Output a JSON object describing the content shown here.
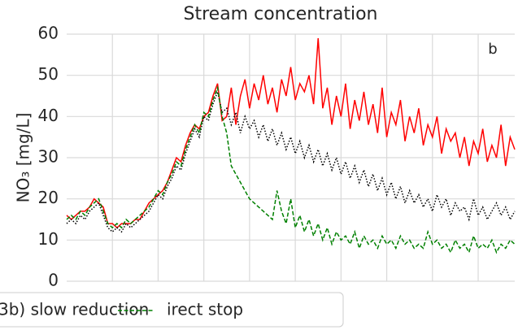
{
  "chart_data": {
    "type": "line",
    "title": "Stream concentration",
    "ylabel": "NO₃ [mg/L]",
    "annotation": "b",
    "x": [
      0,
      1,
      2,
      3,
      4,
      5,
      6,
      7,
      8,
      9,
      10,
      11,
      12,
      13,
      14,
      15,
      16,
      17,
      18,
      19,
      20,
      21,
      22,
      23,
      24,
      25,
      26,
      27,
      28,
      29,
      30,
      31,
      32,
      33,
      34,
      35,
      36,
      37,
      38,
      39,
      40,
      41,
      42,
      43,
      44,
      45,
      46,
      47,
      48,
      49,
      50,
      51,
      52,
      53,
      54,
      55,
      56,
      57,
      58,
      59,
      60,
      61,
      62,
      63,
      64,
      65,
      66,
      67,
      68,
      69,
      70,
      71,
      72,
      73,
      74,
      75,
      76,
      77,
      78,
      79,
      80,
      81,
      82,
      83,
      84,
      85,
      86,
      87,
      88,
      89,
      90,
      91,
      92,
      93,
      94,
      95,
      96,
      97,
      98
    ],
    "xlim": [
      0,
      98
    ],
    "xticks": [
      10,
      20,
      30,
      40,
      50,
      60,
      70,
      80,
      90
    ],
    "ylim": [
      0,
      60
    ],
    "yticks": [
      0,
      10,
      20,
      30,
      40,
      50,
      60
    ],
    "grid": true,
    "series": [
      {
        "name": "3b) slow reduction",
        "color": "#ff0000",
        "dash": "solid",
        "values": [
          16,
          15,
          16,
          17,
          17,
          18,
          20,
          19,
          18,
          14,
          14,
          13,
          14,
          14,
          14,
          15,
          15,
          17,
          19,
          20,
          21,
          22,
          24,
          27,
          30,
          29,
          33,
          36,
          38,
          37,
          40,
          41,
          45,
          48,
          39,
          40,
          47,
          38,
          45,
          49,
          42,
          48,
          44,
          50,
          43,
          47,
          41,
          49,
          45,
          52,
          44,
          48,
          46,
          50,
          43,
          59,
          42,
          47,
          38,
          45,
          40,
          48,
          37,
          44,
          39,
          46,
          38,
          43,
          36,
          47,
          35,
          41,
          38,
          44,
          34,
          40,
          36,
          42,
          33,
          38,
          35,
          40,
          31,
          37,
          34,
          36,
          30,
          35,
          28,
          34,
          31,
          37,
          29,
          33,
          30,
          38,
          28,
          35,
          32
        ]
      },
      {
        "color": "#000000",
        "dash": "dotted",
        "values": [
          14,
          15,
          14,
          16,
          15,
          17,
          18,
          19,
          16,
          13,
          12,
          13,
          12,
          14,
          13,
          14,
          15,
          16,
          17,
          19,
          21,
          20,
          23,
          25,
          28,
          27,
          31,
          34,
          37,
          35,
          40,
          39,
          43,
          46,
          41,
          42,
          38,
          41,
          36,
          40,
          37,
          39,
          35,
          38,
          34,
          37,
          33,
          36,
          32,
          35,
          31,
          34,
          30,
          33,
          29,
          32,
          28,
          31,
          27,
          30,
          26,
          29,
          25,
          28,
          24,
          27,
          23,
          26,
          22,
          25,
          21,
          24,
          20,
          23,
          19,
          22,
          19,
          21,
          18,
          20,
          17,
          21,
          18,
          20,
          16,
          19,
          17,
          18,
          15,
          20,
          16,
          18,
          15,
          17,
          19,
          16,
          18,
          15,
          17
        ]
      },
      {
        "name": "irect stop",
        "color": "#008000",
        "dash": "dashed",
        "values": [
          15,
          16,
          15,
          17,
          16,
          18,
          19,
          20,
          17,
          14,
          13,
          14,
          13,
          15,
          14,
          15,
          16,
          17,
          18,
          20,
          22,
          21,
          24,
          26,
          29,
          28,
          32,
          35,
          38,
          36,
          41,
          40,
          44,
          47,
          40,
          36,
          28,
          26,
          24,
          22,
          20,
          19,
          18,
          17,
          16,
          15,
          22,
          17,
          14,
          20,
          13,
          16,
          12,
          15,
          11,
          14,
          10,
          13,
          9,
          12,
          10,
          11,
          9,
          12,
          8,
          11,
          9,
          10,
          8,
          11,
          9,
          10,
          8,
          11,
          9,
          10,
          8,
          9,
          8,
          12,
          9,
          10,
          8,
          9,
          7,
          10,
          8,
          9,
          7,
          11,
          8,
          9,
          8,
          10,
          7,
          9,
          8,
          10,
          9
        ]
      }
    ]
  }
}
